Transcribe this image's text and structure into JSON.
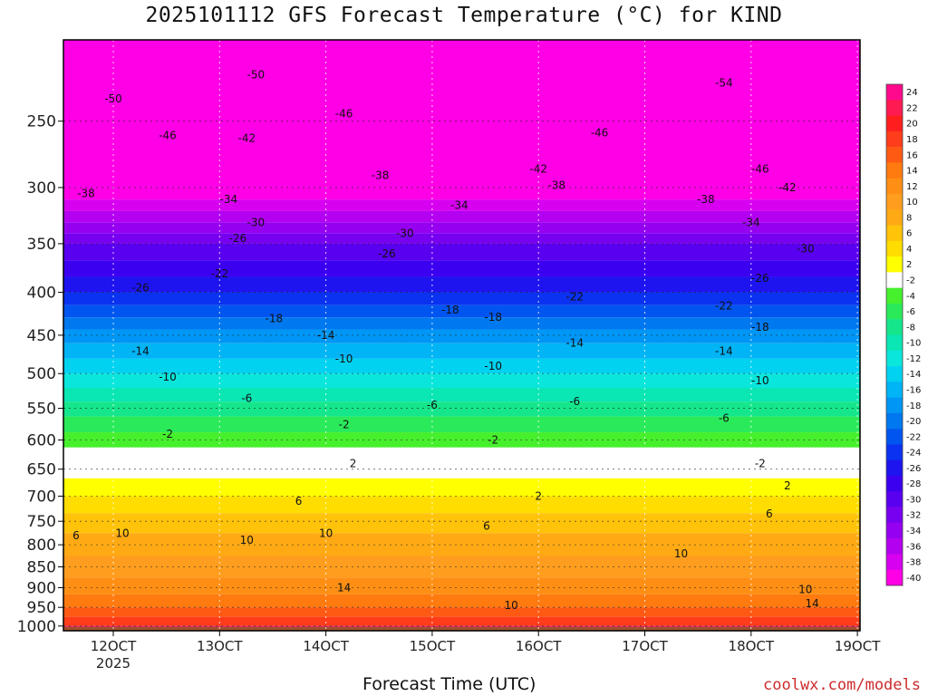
{
  "chart_data": {
    "type": "heatmap",
    "title": "2025101112 GFS Forecast Temperature (°C) for KIND",
    "xlabel": "Forecast Time (UTC)",
    "x_ticks": [
      "12OCT",
      "13OCT",
      "14OCT",
      "15OCT",
      "16OCT",
      "17OCT",
      "18OCT",
      "19OCT"
    ],
    "x_subtick_year": "2025",
    "y_ticks": [
      250,
      300,
      350,
      400,
      450,
      500,
      550,
      600,
      650,
      700,
      750,
      800,
      850,
      900,
      950,
      1000
    ],
    "y_range_hpa": [
      200,
      1013
    ],
    "y_scale": "log",
    "grid": true,
    "colorbar_levels": [
      24,
      22,
      20,
      18,
      16,
      14,
      12,
      10,
      8,
      6,
      4,
      2,
      -2,
      -4,
      -6,
      -8,
      -10,
      -12,
      -14,
      -16,
      -18,
      -20,
      -22,
      -24,
      -26,
      -28,
      -30,
      -32,
      -34,
      -36,
      -38,
      -40
    ],
    "colorbar_colors": [
      "#ff0a8c",
      "#ff1a52",
      "#ff1e1e",
      "#ff3d1a",
      "#ff5a14",
      "#ff7a0f",
      "#ff8f14",
      "#ff9e1e",
      "#ffaa14",
      "#ffc30a",
      "#ffdd00",
      "#ffff00",
      "#ffffff",
      "#46f02d",
      "#2bea5a",
      "#15e68c",
      "#0ae6b4",
      "#0ae6dc",
      "#00d2f0",
      "#00b4f5",
      "#0096f5",
      "#0078f0",
      "#0055f0",
      "#0a32f0",
      "#1e14f0",
      "#3c00f0",
      "#5a00f0",
      "#7800f0",
      "#9600f0",
      "#b400f0",
      "#d700f0",
      "#ff00e6"
    ],
    "contour_labels": [
      {
        "t": "12OCT",
        "p": 235,
        "v": -50
      },
      {
        "t": "13OCT",
        "p": 220,
        "v": -50
      },
      {
        "t": "18OCT",
        "p": 225,
        "v": -54
      },
      {
        "t": "12OCT",
        "p": 260,
        "v": -46
      },
      {
        "t": "14OCT",
        "p": 245,
        "v": -46
      },
      {
        "t": "17OCT",
        "p": 258,
        "v": -46
      },
      {
        "t": "18OCT",
        "p": 285,
        "v": -46
      },
      {
        "t": "13OCT",
        "p": 262,
        "v": -42
      },
      {
        "t": "16OCT",
        "p": 285,
        "v": -42
      },
      {
        "t": "18OCT",
        "p": 300,
        "v": -42
      },
      {
        "t": "12OCT",
        "p": 305,
        "v": -38
      },
      {
        "t": "14OCT",
        "p": 290,
        "v": -38
      },
      {
        "t": "16OCT",
        "p": 298,
        "v": -38
      },
      {
        "t": "18OCT",
        "p": 310,
        "v": -38
      },
      {
        "t": "13OCT",
        "p": 310,
        "v": -34
      },
      {
        "t": "15OCT",
        "p": 315,
        "v": -34
      },
      {
        "t": "18OCT",
        "p": 330,
        "v": -34
      },
      {
        "t": "13OCT",
        "p": 330,
        "v": -30
      },
      {
        "t": "15OCT",
        "p": 340,
        "v": -30
      },
      {
        "t": "18OCT",
        "p": 355,
        "v": -30
      },
      {
        "t": "13OCT",
        "p": 345,
        "v": -26
      },
      {
        "t": "15OCT",
        "p": 360,
        "v": -26
      },
      {
        "t": "18OCT",
        "p": 385,
        "v": -26
      },
      {
        "t": "12OCT",
        "p": 395,
        "v": -26
      },
      {
        "t": "13OCT",
        "p": 380,
        "v": -22
      },
      {
        "t": "16OCT",
        "p": 405,
        "v": -22
      },
      {
        "t": "18OCT",
        "p": 415,
        "v": -22
      },
      {
        "t": "13OCT",
        "p": 430,
        "v": -18
      },
      {
        "t": "15OCT",
        "p": 420,
        "v": -18
      },
      {
        "t": "16OCT",
        "p": 428,
        "v": -18
      },
      {
        "t": "18OCT",
        "p": 440,
        "v": -18
      },
      {
        "t": "12OCT",
        "p": 470,
        "v": -14
      },
      {
        "t": "14OCT",
        "p": 450,
        "v": -14
      },
      {
        "t": "16OCT",
        "p": 460,
        "v": -14
      },
      {
        "t": "18OCT",
        "p": 470,
        "v": -14
      },
      {
        "t": "12OCT",
        "p": 505,
        "v": -10
      },
      {
        "t": "14OCT",
        "p": 480,
        "v": -10
      },
      {
        "t": "16OCT",
        "p": 490,
        "v": -10
      },
      {
        "t": "18OCT",
        "p": 510,
        "v": -10
      },
      {
        "t": "13OCT",
        "p": 535,
        "v": -6
      },
      {
        "t": "15OCT",
        "p": 545,
        "v": -6
      },
      {
        "t": "16OCT",
        "p": 540,
        "v": -6
      },
      {
        "t": "18OCT",
        "p": 565,
        "v": -6
      },
      {
        "t": "12OCT",
        "p": 590,
        "v": -2
      },
      {
        "t": "14OCT",
        "p": 575,
        "v": -2
      },
      {
        "t": "16OCT",
        "p": 600,
        "v": -2
      },
      {
        "t": "18OCT",
        "p": 640,
        "v": -2
      },
      {
        "t": "14OCT",
        "p": 640,
        "v": 2
      },
      {
        "t": "16OCT",
        "p": 700,
        "v": 2
      },
      {
        "t": "18OCT",
        "p": 680,
        "v": 2
      },
      {
        "t": "14OCT",
        "p": 710,
        "v": 6
      },
      {
        "t": "15OCT",
        "p": 760,
        "v": 6
      },
      {
        "t": "18OCT",
        "p": 735,
        "v": 6
      },
      {
        "t": "12OCT",
        "p": 780,
        "v": 6
      },
      {
        "t": "12OCT",
        "p": 775,
        "v": 10
      },
      {
        "t": "13OCT",
        "p": 790,
        "v": 10
      },
      {
        "t": "14OCT",
        "p": 775,
        "v": 10
      },
      {
        "t": "17OCT",
        "p": 820,
        "v": 10
      },
      {
        "t": "16OCT",
        "p": 945,
        "v": 10
      },
      {
        "t": "18OCT",
        "p": 905,
        "v": 10
      },
      {
        "t": "14OCT",
        "p": 900,
        "v": 14
      },
      {
        "t": "19OCT",
        "p": 940,
        "v": 14
      }
    ]
  },
  "page": {
    "title": "2025101112 GFS Forecast Temperature (°C) for KIND",
    "xlabel": "Forecast Time (UTC)",
    "credit": "coolwx.com/models"
  }
}
